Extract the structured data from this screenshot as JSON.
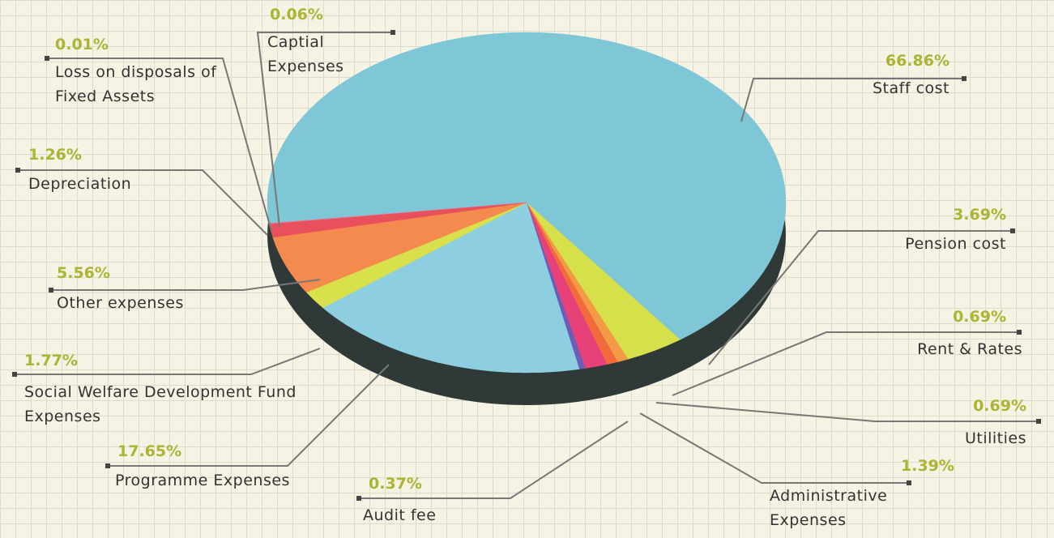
{
  "chart_data": {
    "type": "pie",
    "categories": [
      "Staff cost",
      "Pension cost",
      "Rent & Rates",
      "Utilities",
      "Administrative Expenses",
      "Audit fee",
      "Programme Expenses",
      "Social Welfare Development Fund Expenses",
      "Other expenses",
      "Depreciation",
      "Loss on disposals of Fixed Assets",
      "Captial Expenses"
    ],
    "values": [
      66.86,
      3.69,
      0.69,
      0.69,
      1.39,
      0.37,
      17.65,
      1.77,
      5.56,
      1.26,
      0.01,
      0.06
    ],
    "value_labels": [
      "66.86%",
      "3.69%",
      "0.69%",
      "0.69%",
      "1.39%",
      "0.37%",
      "17.65%",
      "1.77%",
      "5.56%",
      "1.26%",
      "0.01%",
      "0.06%"
    ],
    "colors": [
      "#7fc6d6",
      "#d6e04a",
      "#f39a45",
      "#f06a3e",
      "#e8417a",
      "#6a5fb8",
      "#8dcfe0",
      "#d8e14c",
      "#f58a4e",
      "#e8505b",
      "#c93a6a",
      "#e87a90"
    ]
  }
}
